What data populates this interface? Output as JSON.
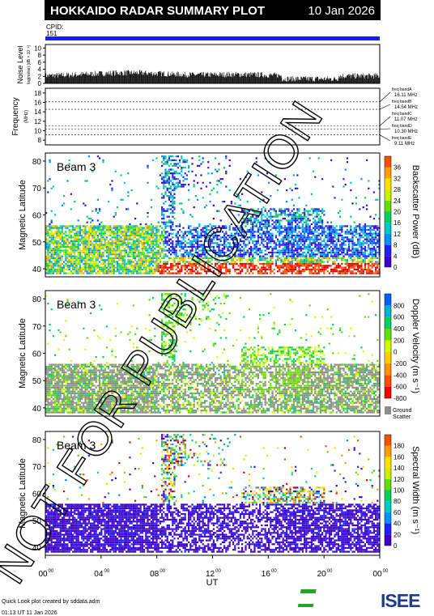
{
  "header": {
    "title": "HOKKAIDO RADAR SUMMARY PLOT",
    "date": "10 Jan 2026",
    "cpid_label": "CPID:",
    "cpid_value": "151"
  },
  "noise_panel": {
    "ylabel": "Noise Level",
    "yunit": "log(noise) [dB × 10⁻²]",
    "ticks": [
      "0",
      "2",
      "4",
      "6",
      "8",
      "10"
    ]
  },
  "freq_panel": {
    "ylabel": "Frequency",
    "yunit": "(MHz)",
    "ticks": [
      "8",
      "10",
      "12",
      "14",
      "16",
      "18"
    ],
    "bands": [
      {
        "label": "freq bandA",
        "freq": "16.11 MHz",
        "value": 16.11
      },
      {
        "label": "freq bandB",
        "freq": "14.54 MHz",
        "value": 14.54
      },
      {
        "label": "freq bandC",
        "freq": "11.07 MHz",
        "value": 11.07
      },
      {
        "label": "freq bandD",
        "freq": "10.30 MHz",
        "value": 10.3
      },
      {
        "label": "freq bandE",
        "freq": "9.11 MHz",
        "value": 9.11
      }
    ]
  },
  "panels": [
    {
      "beam": "Beam 3",
      "ylabel": "Magnetic Latitude",
      "cbar_label": "Backscatter Power (dB)",
      "cbar_ticks": [
        "0",
        "4",
        "8",
        "12",
        "16",
        "20",
        "24",
        "28",
        "32",
        "36"
      ]
    },
    {
      "beam": "Beam 3",
      "ylabel": "Magnetic Latitude",
      "cbar_label": "Doppler Velocity (m s⁻¹)",
      "cbar_ticks": [
        "-800",
        "-600",
        "-400",
        "-200",
        "0",
        "200",
        "400",
        "600",
        "800"
      ],
      "ground_label": "Ground",
      "ground_label2": "Scatter"
    },
    {
      "beam": "Beam 3",
      "ylabel": "Magnetic Latitude",
      "cbar_label": "Spectral Width (m s⁻¹)",
      "cbar_ticks": [
        "0",
        "20",
        "40",
        "60",
        "80",
        "100",
        "120",
        "140",
        "160",
        "180"
      ]
    }
  ],
  "lat_ticks": [
    "40",
    "50",
    "60",
    "70",
    "80"
  ],
  "x_axis": {
    "label": "UT",
    "ticks": [
      {
        "h": "00",
        "m": "00"
      },
      {
        "h": "04",
        "m": "00"
      },
      {
        "h": "08",
        "m": "00"
      },
      {
        "h": "12",
        "m": "00"
      },
      {
        "h": "16",
        "m": "00"
      },
      {
        "h": "20",
        "m": "00"
      },
      {
        "h": "00",
        "m": "00"
      }
    ]
  },
  "footer": {
    "line1": "Quick Look plot created by sddata.adm",
    "line2": "01:13 UT 11 Jan 2026",
    "logo_text": "ISEE"
  },
  "watermark": "NOT FOR PUBLICATION",
  "colors": {
    "cpid_bar": "#1a1aff",
    "power_scale": [
      "#3c00c8",
      "#2020ff",
      "#0090ff",
      "#00c8c8",
      "#00d060",
      "#60e000",
      "#c8f000",
      "#ffe000",
      "#ffa000",
      "#ff5000",
      "#e00000"
    ],
    "velocity_scale": [
      "#ff0000",
      "#ff5000",
      "#ff9000",
      "#ffd000",
      "#d0ff00",
      "#60e000",
      "#00d060",
      "#00b0d0",
      "#0060ff",
      "#3000d0"
    ],
    "ground": "#8c8c8c"
  },
  "chart_data": {
    "type": "heatmap",
    "x_range_hours": [
      0,
      24
    ],
    "lat_range": [
      37,
      83
    ],
    "noise": {
      "ylim": [
        0,
        11
      ],
      "typical_level": 2
    },
    "frequency": {
      "ylim": [
        7,
        19
      ]
    },
    "power": {
      "ylim": [
        0,
        36
      ]
    },
    "velocity": {
      "ylim": [
        -800,
        800
      ]
    },
    "width": {
      "ylim": [
        0,
        190
      ]
    }
  }
}
